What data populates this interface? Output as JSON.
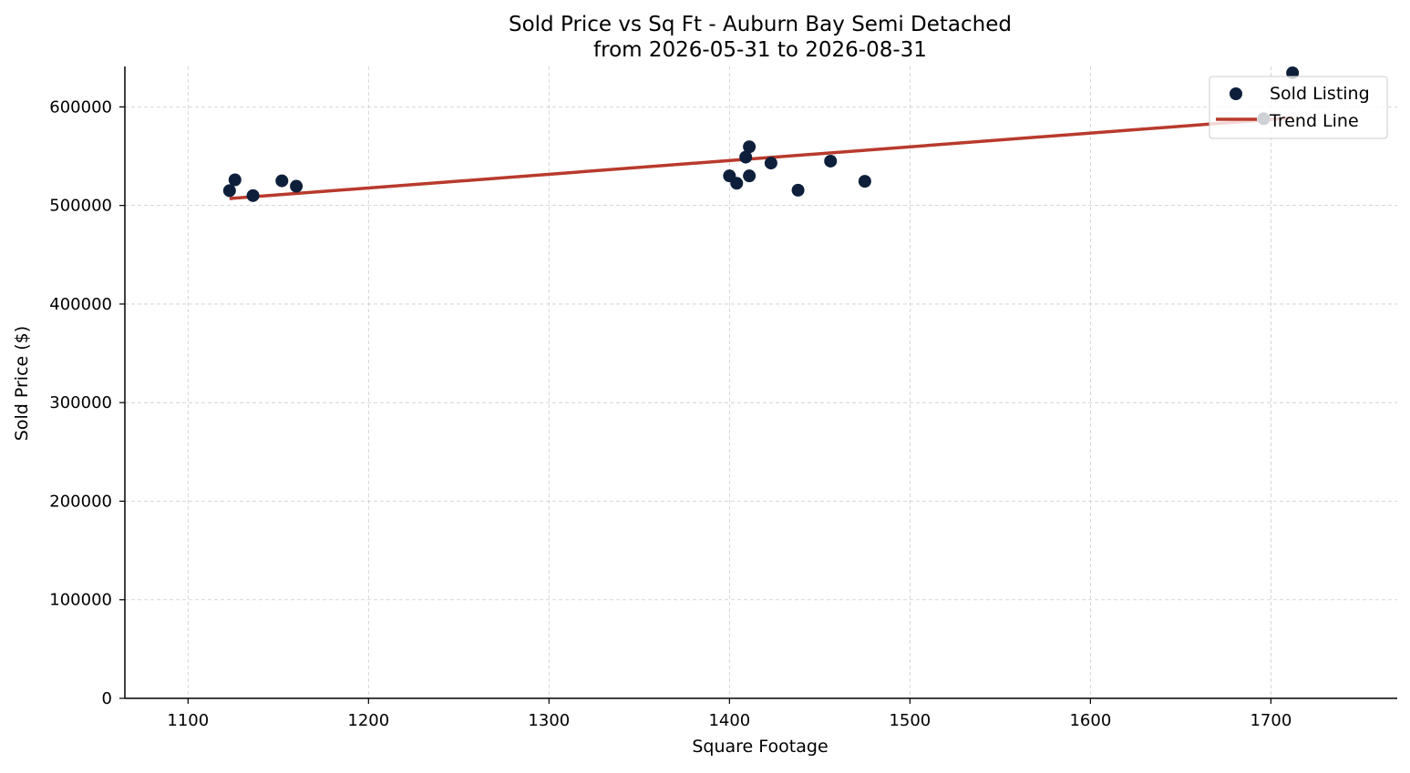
{
  "chart_data": {
    "type": "scatter",
    "title": "Sold Price vs Sq Ft - Auburn Bay Semi Detached",
    "subtitle": "from 2026-05-31 to 2026-08-31",
    "xlabel": "Square Footage",
    "ylabel": "Sold Price ($)",
    "xlim": [
      1065,
      1770
    ],
    "ylim": [
      0,
      641000
    ],
    "x_ticks": [
      1100,
      1200,
      1300,
      1400,
      1500,
      1600,
      1700
    ],
    "y_ticks": [
      0,
      100000,
      200000,
      300000,
      400000,
      500000,
      600000
    ],
    "grid": true,
    "legend_position": "top-right",
    "series": [
      {
        "name": "Sold Listing",
        "kind": "scatter",
        "color": "#0d1f3a",
        "points": [
          {
            "x": 1123,
            "y": 515000
          },
          {
            "x": 1126,
            "y": 526000
          },
          {
            "x": 1136,
            "y": 510000
          },
          {
            "x": 1152,
            "y": 525000
          },
          {
            "x": 1160,
            "y": 519500
          },
          {
            "x": 1400,
            "y": 530000
          },
          {
            "x": 1404,
            "y": 522500
          },
          {
            "x": 1409,
            "y": 549000
          },
          {
            "x": 1411,
            "y": 559500
          },
          {
            "x": 1411,
            "y": 530000
          },
          {
            "x": 1423,
            "y": 543000
          },
          {
            "x": 1438,
            "y": 515500
          },
          {
            "x": 1456,
            "y": 545000
          },
          {
            "x": 1475,
            "y": 524500
          },
          {
            "x": 1696,
            "y": 588000
          },
          {
            "x": 1712,
            "y": 634500
          }
        ]
      },
      {
        "name": "Trend Line",
        "kind": "line",
        "color": "#b83a2c",
        "points": [
          {
            "x": 1123,
            "y": 507000
          },
          {
            "x": 1712,
            "y": 589000
          }
        ]
      }
    ]
  }
}
